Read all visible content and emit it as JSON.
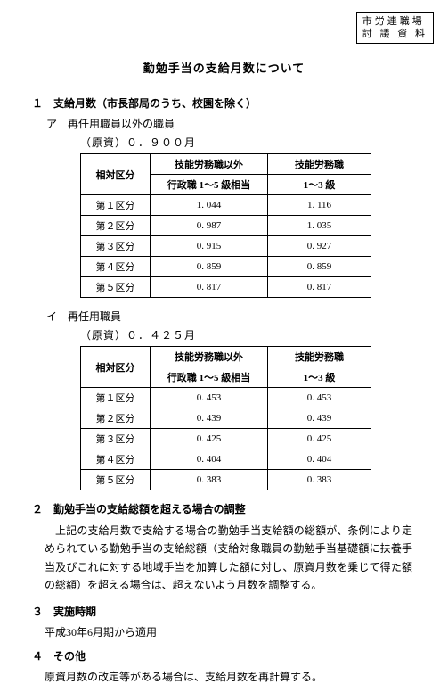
{
  "header_box": {
    "line1": "市労連職場",
    "line2": "討 議 資 料"
  },
  "title": "勤勉手当の支給月数について",
  "section1": {
    "heading": "１　支給月数（市長部局のうち、校園を除く）",
    "partA": {
      "label": "ア　再任用職員以外の職員",
      "gensi": "（原資）０．９００月",
      "table": {
        "h1": "相対区分",
        "h2": "技能労務職以外",
        "h3": "技能労務職",
        "h2s": "行政職 1～5 級相当",
        "h3s": "1～3 級",
        "rows": [
          {
            "k": "第１区分",
            "v1": "1. 044",
            "v2": "1. 116"
          },
          {
            "k": "第２区分",
            "v1": "0. 987",
            "v2": "1. 035"
          },
          {
            "k": "第３区分",
            "v1": "0. 915",
            "v2": "0. 927"
          },
          {
            "k": "第４区分",
            "v1": "0. 859",
            "v2": "0. 859"
          },
          {
            "k": "第５区分",
            "v1": "0. 817",
            "v2": "0. 817"
          }
        ]
      }
    },
    "partB": {
      "label": "イ　再任用職員",
      "gensi": "（原資）０．４２５月",
      "table": {
        "h1": "相対区分",
        "h2": "技能労務職以外",
        "h3": "技能労務職",
        "h2s": "行政職 1～5 級相当",
        "h3s": "1～3 級",
        "rows": [
          {
            "k": "第１区分",
            "v1": "0. 453",
            "v2": "0. 453"
          },
          {
            "k": "第２区分",
            "v1": "0. 439",
            "v2": "0. 439"
          },
          {
            "k": "第３区分",
            "v1": "0. 425",
            "v2": "0. 425"
          },
          {
            "k": "第４区分",
            "v1": "0. 404",
            "v2": "0. 404"
          },
          {
            "k": "第５区分",
            "v1": "0. 383",
            "v2": "0. 383"
          }
        ]
      }
    }
  },
  "section2": {
    "heading": "２　勤勉手当の支給総額を超える場合の調整",
    "body": "上記の支給月数で支給する場合の勤勉手当支給額の総額が、条例により定められている勤勉手当の支給総額（支給対象職員の勤勉手当基礎額に扶養手当及びこれに対する地域手当を加算した額に対し、原資月数を乗じて得た額の総額）を超える場合は、超えないよう月数を調整する。"
  },
  "section3": {
    "heading": "３　実施時期",
    "body": "平成30年6月期から適用"
  },
  "section4": {
    "heading": "４　その他",
    "body": "原資月数の改定等がある場合は、支給月数を再計算する。"
  }
}
